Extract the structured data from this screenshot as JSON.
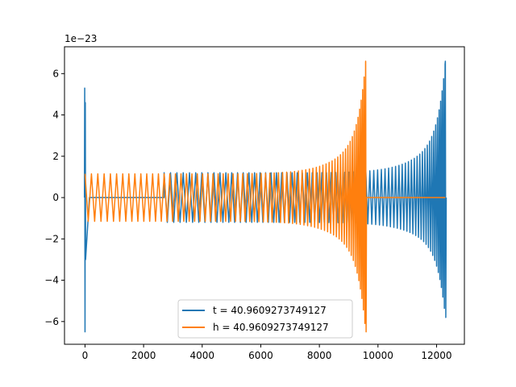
{
  "chart_data": {
    "type": "line",
    "title": "",
    "xlabel": "",
    "ylabel": "",
    "y_offset_label": "1e−23",
    "xlim": [
      -700,
      12950
    ],
    "ylim": [
      -7.1,
      7.3
    ],
    "x_ticks": [
      0,
      2000,
      4000,
      6000,
      8000,
      10000,
      12000
    ],
    "x_tick_labels": [
      "0",
      "2000",
      "4000",
      "6000",
      "8000",
      "10000",
      "12000"
    ],
    "y_ticks": [
      -6,
      -4,
      -2,
      0,
      2,
      4,
      6
    ],
    "y_tick_labels": [
      "−6",
      "−4",
      "−2",
      "0",
      "2",
      "4",
      "6"
    ],
    "grid": false,
    "legend_position": "lower-center",
    "series": [
      {
        "name": "t = 40.9609273749127",
        "color": "#1f77b4",
        "shape": "chirp",
        "start_x": 2700,
        "end_x": 12300,
        "amplitude_start": 1.2,
        "amplitude_mid": 1.6,
        "amplitude_peak": 6.6,
        "amplitude_min": -5.8,
        "flat_zero_range": [
          150,
          2700
        ],
        "wraparound_spike_x": 0,
        "wraparound_spike_max": 5.3,
        "wraparound_spike_min": -6.5
      },
      {
        "name": "h = 40.9609273749127",
        "color": "#ff7f0e",
        "shape": "chirp",
        "start_x": 0,
        "end_x": 9580,
        "amplitude_start": 1.15,
        "amplitude_peak": 6.6,
        "amplitude_min": -6.5,
        "flat_zero_range": [
          9600,
          12300
        ]
      }
    ]
  }
}
